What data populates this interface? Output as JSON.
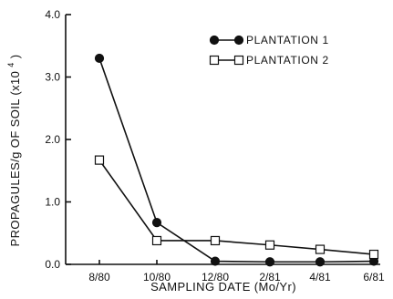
{
  "chart_data": {
    "type": "line",
    "title": "",
    "xlabel": "SAMPLING DATE (Mo/Yr)",
    "ylabel": "PROPAGULES/g OF SOIL (x10⁴)",
    "ylabel_main": "PROPAGULES/g OF SOIL (x10",
    "ylabel_exp": "4",
    "ylabel_tail": ")",
    "categories": [
      "8/80",
      "10/80",
      "12/80",
      "2/81",
      "4/81",
      "6/81"
    ],
    "ylim": [
      0,
      4.0
    ],
    "yticks": [
      "0.0",
      "1.0",
      "2.0",
      "3.0",
      "4.0"
    ],
    "grid": false,
    "legend_position": "top-right",
    "series": [
      {
        "name": "PLANTATION 1",
        "marker": "filled-circle",
        "values": [
          3.3,
          0.67,
          0.05,
          0.04,
          0.04,
          0.05
        ]
      },
      {
        "name": "PLANTATION 2",
        "marker": "open-square",
        "values": [
          1.67,
          0.38,
          0.38,
          0.31,
          0.24,
          0.16
        ]
      }
    ],
    "colors": {
      "ink": "#111111",
      "background": "#ffffff"
    }
  }
}
